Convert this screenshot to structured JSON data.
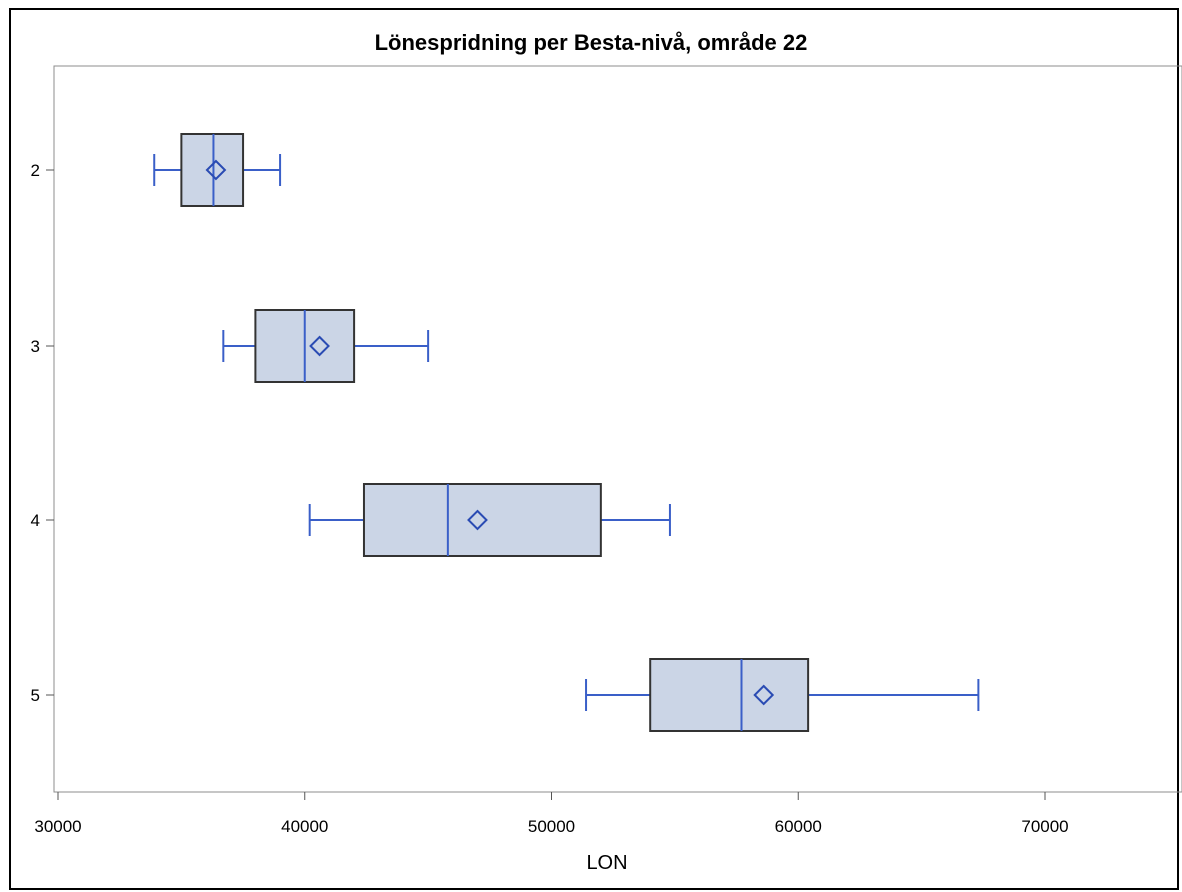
{
  "chart_data": {
    "type": "boxplot",
    "title": "Lönespridning per Besta-nivå, område 22",
    "xlabel": "LON",
    "ylabel": "",
    "xlim": [
      29900,
      75500
    ],
    "xticks": [
      30000,
      40000,
      50000,
      60000,
      70000
    ],
    "xtick_labels": [
      "30000",
      "40000",
      "50000",
      "60000",
      "70000"
    ],
    "grid": false,
    "categories": [
      "2",
      "3",
      "4",
      "5"
    ],
    "series": [
      {
        "category": "2",
        "min": 33900,
        "q1": 35000,
        "median": 36300,
        "q3": 37500,
        "max": 39000,
        "mean": 36400
      },
      {
        "category": "3",
        "min": 36700,
        "q1": 38000,
        "median": 40000,
        "q3": 42000,
        "max": 45000,
        "mean": 40600
      },
      {
        "category": "4",
        "min": 40200,
        "q1": 42400,
        "median": 45800,
        "q3": 52000,
        "max": 54800,
        "mean": 47000
      },
      {
        "category": "5",
        "min": 51400,
        "q1": 54000,
        "median": 57700,
        "q3": 60400,
        "max": 67300,
        "mean": 58600
      }
    ],
    "colors": {
      "box_fill": "#cbd5e6",
      "box_stroke": "#333333",
      "whisker": "#3a5fc8",
      "mean_marker": "#2a4bb3"
    }
  }
}
